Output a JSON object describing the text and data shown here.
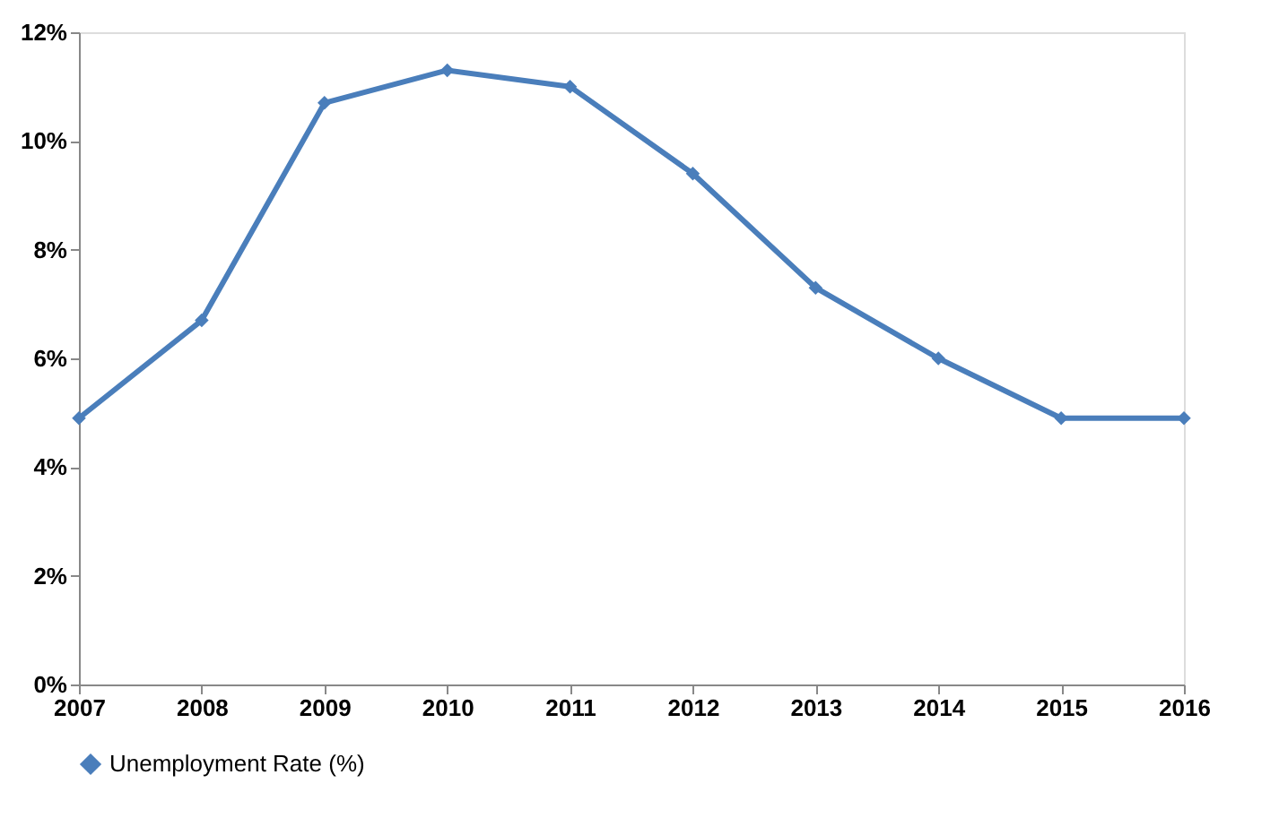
{
  "chart_data": {
    "type": "line",
    "categories": [
      "2007",
      "2008",
      "2009",
      "2010",
      "2011",
      "2012",
      "2013",
      "2014",
      "2015",
      "2016"
    ],
    "series": [
      {
        "name": "Unemployment Rate (%)",
        "color": "#4a7ebb",
        "values": [
          4.9,
          6.7,
          10.7,
          11.3,
          11.0,
          9.4,
          7.3,
          6.0,
          4.9,
          4.9
        ]
      }
    ],
    "ylim": [
      0,
      12
    ],
    "yticks": [
      {
        "value": 0,
        "label": "0%"
      },
      {
        "value": 2,
        "label": "2%"
      },
      {
        "value": 4,
        "label": "4%"
      },
      {
        "value": 6,
        "label": "6%"
      },
      {
        "value": 8,
        "label": "8%"
      },
      {
        "value": 10,
        "label": "10%"
      },
      {
        "value": 12,
        "label": "12%"
      }
    ],
    "grid": false,
    "legend": "bottom",
    "marker": "diamond",
    "line_style": "solid"
  }
}
